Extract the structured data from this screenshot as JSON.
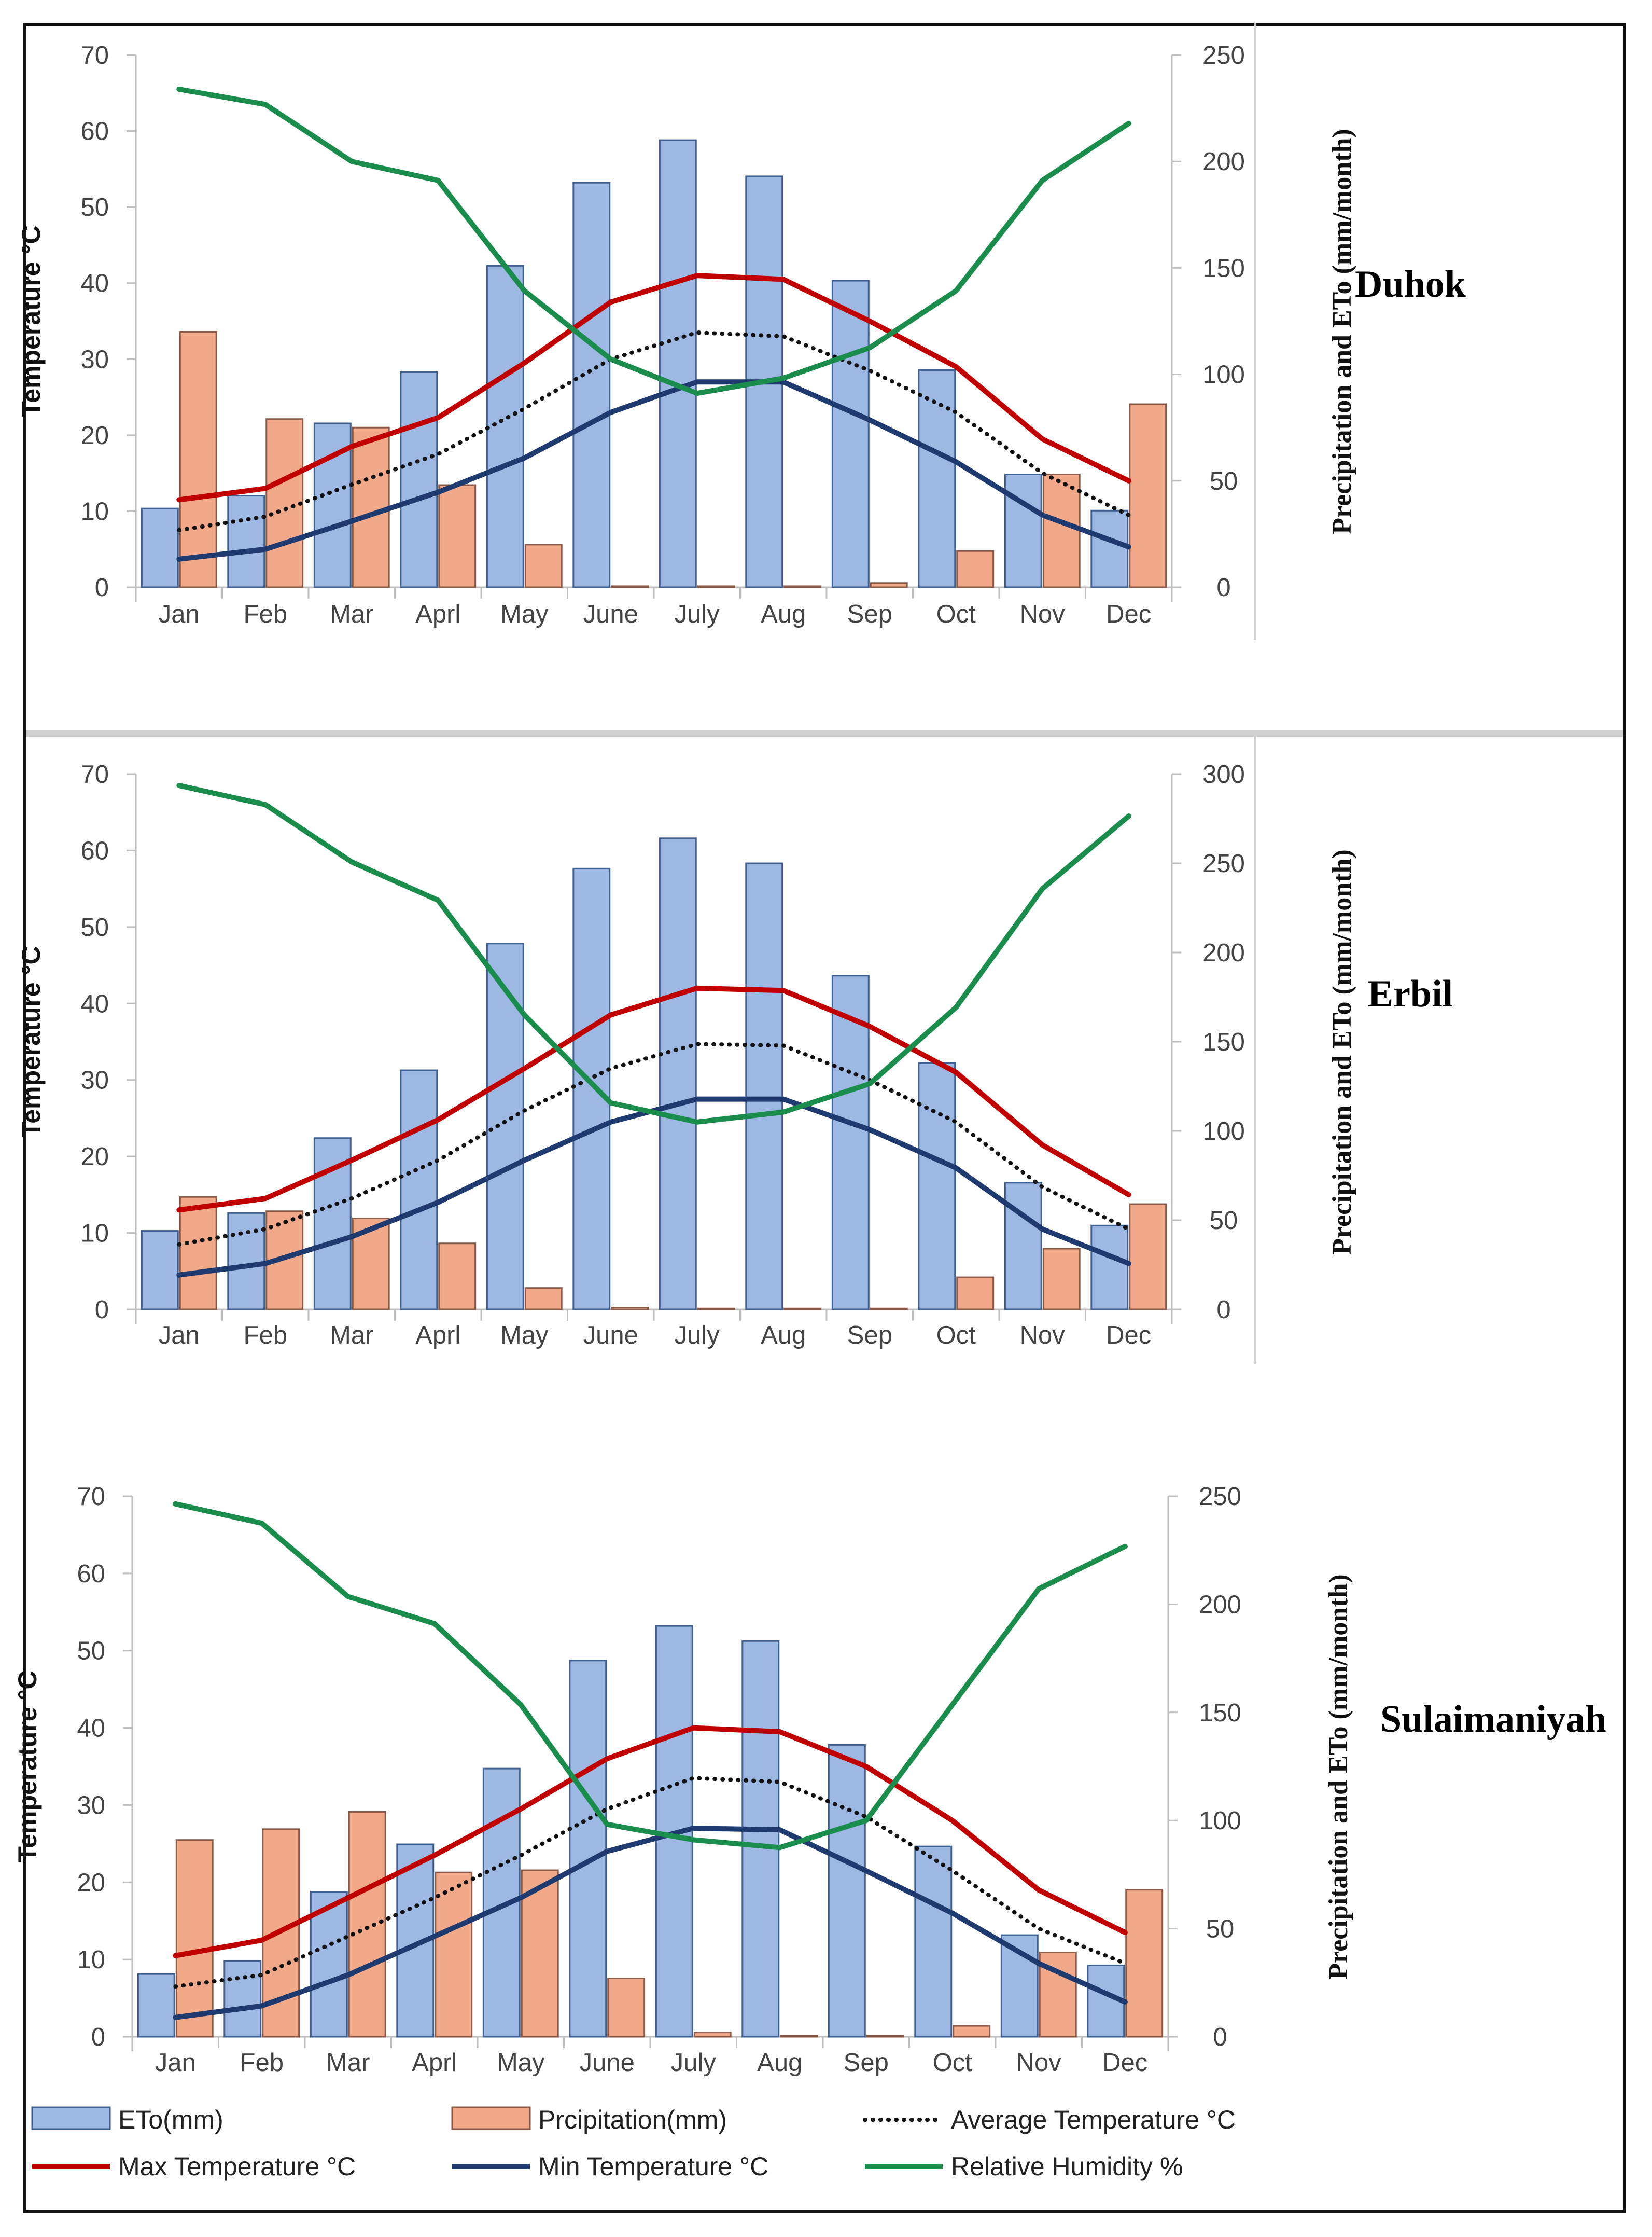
{
  "colors": {
    "eto_fill": "#9DB9E3",
    "eto_stroke": "#3F5F8F",
    "precip_fill": "#F2A98A",
    "precip_stroke": "#8A5A48",
    "max": "#C00000",
    "min": "#1F3A6E",
    "avg": "#111111",
    "rh": "#1A8C4B"
  },
  "legend": {
    "eto": "ETo(mm)",
    "precip": "Prcipitation(mm)",
    "avg": "Average Temperature °C",
    "max": "Max Temperature °C",
    "min": "Min Temperature °C",
    "rh": "Relative Humidity %"
  },
  "chart_data": [
    {
      "type": "bar+line",
      "title": "Duhok",
      "categories": [
        "Jan",
        "Feb",
        "Mar",
        "Aprl",
        "May",
        "June",
        "July",
        "Aug",
        "Sep",
        "Oct",
        "Nov",
        "Dec"
      ],
      "ylabel": "Temperature °C",
      "y2label": "Precipitation and ETo (mm/month)",
      "ylim": [
        0,
        70
      ],
      "yticks": [
        0,
        10,
        20,
        30,
        40,
        50,
        60,
        70
      ],
      "y2lim": [
        0,
        250
      ],
      "y2ticks": [
        0,
        50,
        100,
        150,
        200,
        250
      ],
      "bars": [
        {
          "name": "ETo(mm)",
          "axis": "right",
          "values": [
            37,
            43,
            77,
            101,
            151,
            190,
            210,
            193,
            144,
            102,
            53,
            36
          ]
        },
        {
          "name": "Prcipitation(mm)",
          "axis": "right",
          "values": [
            120,
            79,
            75,
            48,
            20,
            0.5,
            0.5,
            0.5,
            2,
            17,
            53,
            86
          ]
        }
      ],
      "lines": [
        {
          "name": "Max Temperature °C",
          "key": "max",
          "values": [
            11.5,
            13,
            18.5,
            22.3,
            29.5,
            37.5,
            41,
            40.5,
            35,
            29,
            19.5,
            14
          ]
        },
        {
          "name": "Average Temperature °C",
          "key": "avg",
          "values": [
            7.5,
            9.3,
            13.5,
            17.5,
            23.5,
            30,
            33.5,
            33,
            28.5,
            23,
            15,
            9.5
          ]
        },
        {
          "name": "Min Temperature °C",
          "key": "min",
          "values": [
            3.7,
            5,
            8.7,
            12.5,
            17,
            23,
            27,
            27,
            22,
            16.5,
            9.5,
            5.3
          ]
        },
        {
          "name": "Relative Humidity %",
          "key": "rh",
          "values": [
            65.5,
            63.5,
            56,
            53.5,
            39,
            30,
            25.5,
            27.5,
            31.5,
            39,
            53.5,
            61
          ]
        }
      ]
    },
    {
      "type": "bar+line",
      "title": "Erbil",
      "categories": [
        "Jan",
        "Feb",
        "Mar",
        "Aprl",
        "May",
        "June",
        "July",
        "Aug",
        "Sep",
        "Oct",
        "Nov",
        "Dec"
      ],
      "ylabel": "Temperature °C",
      "y2label": "Precipitation and ETo (mm/month)",
      "ylim": [
        0,
        70
      ],
      "yticks": [
        0,
        10,
        20,
        30,
        40,
        50,
        60,
        70
      ],
      "y2lim": [
        0,
        300
      ],
      "y2ticks": [
        0,
        50,
        100,
        150,
        200,
        250,
        300
      ],
      "bars": [
        {
          "name": "ETo(mm)",
          "axis": "right",
          "values": [
            44,
            54,
            96,
            134,
            205,
            247,
            264,
            250,
            187,
            138,
            71,
            47
          ]
        },
        {
          "name": "Prcipitation(mm)",
          "axis": "right",
          "values": [
            63,
            55,
            51,
            37,
            12,
            1,
            0.5,
            0.5,
            0.5,
            18,
            34,
            59
          ]
        }
      ],
      "lines": [
        {
          "name": "Max Temperature °C",
          "key": "max",
          "values": [
            13,
            14.5,
            19.5,
            24.8,
            31.5,
            38.5,
            42,
            41.7,
            37,
            31,
            21.5,
            15
          ]
        },
        {
          "name": "Average Temperature °C",
          "key": "avg",
          "values": [
            8.5,
            10.5,
            14.5,
            19.5,
            26,
            31.5,
            34.7,
            34.5,
            30,
            24.5,
            16,
            10.5
          ]
        },
        {
          "name": "Min Temperature °C",
          "key": "min",
          "values": [
            4.5,
            6,
            9.5,
            14,
            19.5,
            24.5,
            27.5,
            27.5,
            23.5,
            18.5,
            10.5,
            6
          ]
        },
        {
          "name": "Relative Humidity %",
          "key": "rh",
          "values": [
            68.5,
            66,
            58.5,
            53.5,
            38.5,
            27,
            24.5,
            25.8,
            29.5,
            39.5,
            55,
            64.5
          ]
        }
      ]
    },
    {
      "type": "bar+line",
      "title": "Sulaimaniyah",
      "categories": [
        "Jan",
        "Feb",
        "Mar",
        "Aprl",
        "May",
        "June",
        "July",
        "Aug",
        "Sep",
        "Oct",
        "Nov",
        "Dec"
      ],
      "ylabel": "Temperature °C",
      "y2label": "Precipitation and ETo (mm/month)",
      "ylim": [
        0,
        70
      ],
      "yticks": [
        0,
        10,
        20,
        30,
        40,
        50,
        60,
        70
      ],
      "y2lim": [
        0,
        250
      ],
      "y2ticks": [
        0,
        50,
        100,
        150,
        200,
        250
      ],
      "bars": [
        {
          "name": "ETo(mm)",
          "axis": "right",
          "values": [
            29,
            35,
            67,
            89,
            124,
            174,
            190,
            183,
            135,
            88,
            47,
            33
          ]
        },
        {
          "name": "Prcipitation(mm)",
          "axis": "right",
          "values": [
            91,
            96,
            104,
            76,
            77,
            27,
            2,
            0.5,
            0.5,
            5,
            39,
            68
          ]
        }
      ],
      "lines": [
        {
          "name": "Max Temperature °C",
          "key": "max",
          "values": [
            10.5,
            12.5,
            18,
            23.5,
            29.5,
            36,
            40,
            39.5,
            35,
            28,
            19,
            13.5
          ]
        },
        {
          "name": "Average Temperature °C",
          "key": "avg",
          "values": [
            6.5,
            8,
            13,
            18,
            23.5,
            29.5,
            33.5,
            33,
            28.5,
            21.5,
            14,
            9.5
          ]
        },
        {
          "name": "Min Temperature °C",
          "key": "min",
          "values": [
            2.5,
            4,
            8,
            13,
            18,
            24,
            27,
            26.8,
            21.5,
            16,
            9.5,
            4.5
          ]
        },
        {
          "name": "Relative Humidity %",
          "key": "rh",
          "values": [
            69,
            66.5,
            57,
            53.5,
            43,
            27.5,
            25.5,
            24.5,
            28,
            43,
            58,
            63.5
          ]
        }
      ]
    }
  ]
}
